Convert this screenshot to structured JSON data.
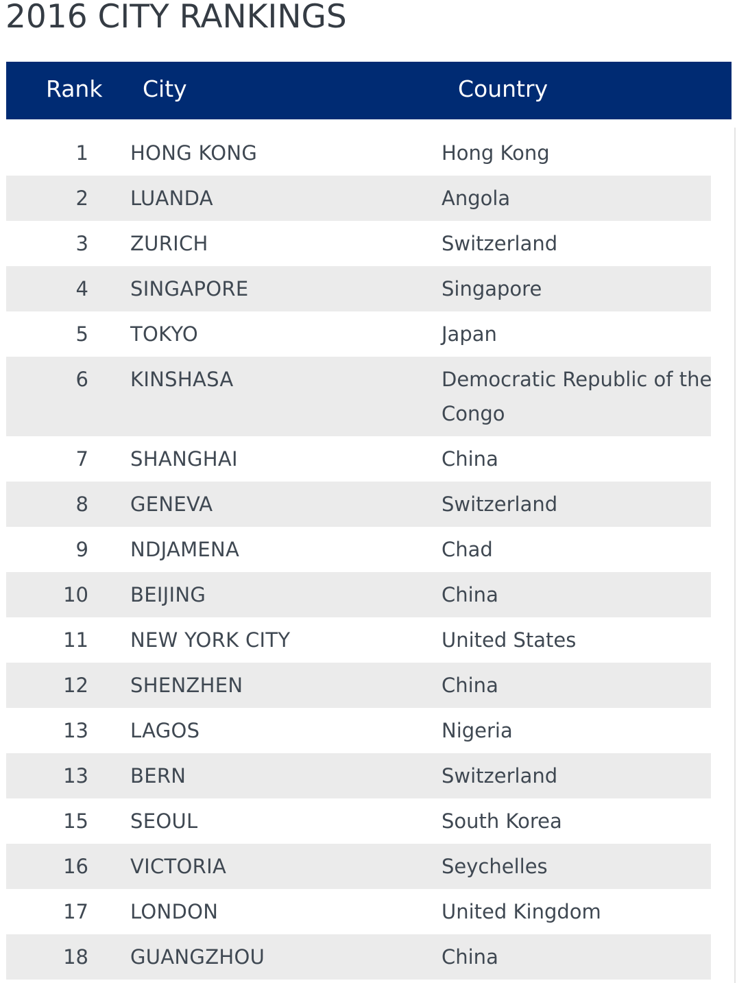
{
  "page": {
    "title": "2016 CITY RANKINGS"
  },
  "table": {
    "header_color": "#002b73",
    "alt_row_color": "#ebebeb",
    "columns": {
      "rank": "Rank",
      "city": "City",
      "country": "Country"
    },
    "rows": [
      {
        "rank": "1",
        "city": "HONG KONG",
        "country": "Hong Kong"
      },
      {
        "rank": "2",
        "city": "LUANDA",
        "country": "Angola"
      },
      {
        "rank": "3",
        "city": "ZURICH",
        "country": "Switzerland"
      },
      {
        "rank": "4",
        "city": "SINGAPORE",
        "country": "Singapore"
      },
      {
        "rank": "5",
        "city": "TOKYO",
        "country": "Japan"
      },
      {
        "rank": "6",
        "city": "KINSHASA",
        "country": "Democratic Republic of the Congo"
      },
      {
        "rank": "7",
        "city": "SHANGHAI",
        "country": "China"
      },
      {
        "rank": "8",
        "city": "GENEVA",
        "country": "Switzerland"
      },
      {
        "rank": "9",
        "city": "NDJAMENA",
        "country": "Chad"
      },
      {
        "rank": "10",
        "city": "BEIJING",
        "country": "China"
      },
      {
        "rank": "11",
        "city": "NEW YORK CITY",
        "country": "United States"
      },
      {
        "rank": "12",
        "city": "SHENZHEN",
        "country": "China"
      },
      {
        "rank": "13",
        "city": "LAGOS",
        "country": "Nigeria"
      },
      {
        "rank": "13",
        "city": "BERN",
        "country": "Switzerland"
      },
      {
        "rank": "15",
        "city": "SEOUL",
        "country": "South Korea"
      },
      {
        "rank": "16",
        "city": "VICTORIA",
        "country": "Seychelles"
      },
      {
        "rank": "17",
        "city": "LONDON",
        "country": "United Kingdom"
      },
      {
        "rank": "18",
        "city": "GUANGZHOU",
        "country": "China"
      }
    ]
  }
}
